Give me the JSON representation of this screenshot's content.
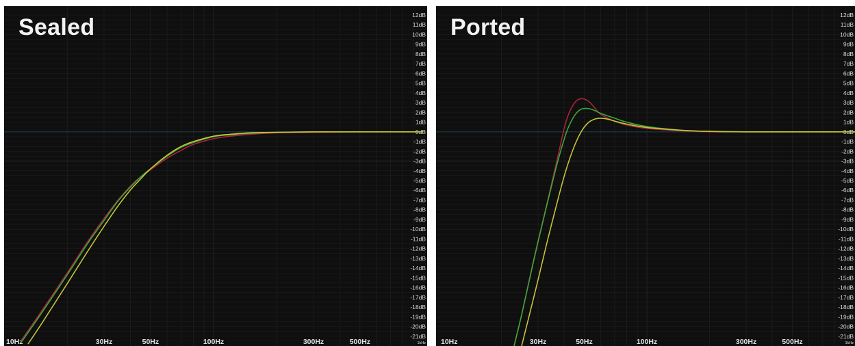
{
  "panels": [
    {
      "title": "Sealed"
    },
    {
      "title": "Ported"
    }
  ],
  "colors": {
    "background": "#0f0f0f",
    "grid": "#262626",
    "reference_line": "#1c3c48",
    "series": [
      "#a8243c",
      "#3aa83a",
      "#c4c43a"
    ]
  },
  "chart_data": [
    {
      "type": "line",
      "title": "Sealed",
      "x_scale": "log",
      "xlim": [
        10,
        1000
      ],
      "ylim": [
        -22,
        12
      ],
      "x_ticks": [
        {
          "value": 10,
          "label": "10Hz"
        },
        {
          "value": 30,
          "label": "30Hz"
        },
        {
          "value": 50,
          "label": "50Hz"
        },
        {
          "value": 100,
          "label": "100Hz"
        },
        {
          "value": 300,
          "label": "300Hz"
        },
        {
          "value": 500,
          "label": "500Hz"
        },
        {
          "value": 1000,
          "label": "1kHz"
        }
      ],
      "y_ticks": [
        "12dB",
        "11dB",
        "10dB",
        "9dB",
        "8dB",
        "7dB",
        "6dB",
        "5dB",
        "4dB",
        "3dB",
        "2dB",
        "1dB",
        "0dB",
        "-1dB",
        "-2dB",
        "-3dB",
        "-4dB",
        "-5dB",
        "-6dB",
        "-7dB",
        "-8dB",
        "-9dB",
        "-10dB",
        "-11dB",
        "-12dB",
        "-13dB",
        "-14dB",
        "-15dB",
        "-16dB",
        "-17dB",
        "-18dB",
        "-19dB",
        "-20dB",
        "-21dB"
      ],
      "grid": true,
      "series": [
        {
          "x": [
            12,
            15,
            20,
            25,
            30,
            35,
            40,
            45,
            50,
            60,
            70,
            80,
            100,
            120,
            150,
            200,
            300,
            500,
            1000
          ],
          "y": [
            -21.5,
            -18.5,
            -14.5,
            -11.3,
            -8.9,
            -7.0,
            -5.6,
            -4.6,
            -3.9,
            -2.7,
            -1.9,
            -1.3,
            -0.7,
            -0.45,
            -0.25,
            -0.1,
            -0.05,
            0,
            0
          ]
        },
        {
          "x": [
            12,
            15,
            20,
            25,
            30,
            35,
            40,
            45,
            50,
            60,
            70,
            80,
            100,
            120,
            150,
            200,
            300,
            500,
            1000
          ],
          "y": [
            -21.7,
            -18.7,
            -14.7,
            -11.5,
            -9.1,
            -7.1,
            -5.7,
            -4.6,
            -3.8,
            -2.5,
            -1.6,
            -1.1,
            -0.5,
            -0.3,
            -0.15,
            -0.05,
            0,
            0,
            0
          ]
        },
        {
          "x": [
            13,
            15,
            20,
            25,
            30,
            35,
            40,
            45,
            50,
            60,
            70,
            80,
            100,
            120,
            150,
            200,
            300,
            500,
            1000
          ],
          "y": [
            -21.8,
            -19.8,
            -15.6,
            -12.3,
            -9.7,
            -7.6,
            -6.0,
            -4.8,
            -3.8,
            -2.4,
            -1.5,
            -1.0,
            -0.45,
            -0.25,
            -0.1,
            -0.05,
            0,
            0,
            0
          ]
        }
      ]
    },
    {
      "type": "line",
      "title": "Ported",
      "x_scale": "log",
      "xlim": [
        10,
        1000
      ],
      "ylim": [
        -22,
        12
      ],
      "x_ticks": [
        {
          "value": 10,
          "label": "10Hz"
        },
        {
          "value": 30,
          "label": "30Hz"
        },
        {
          "value": 50,
          "label": "50Hz"
        },
        {
          "value": 100,
          "label": "100Hz"
        },
        {
          "value": 300,
          "label": "300Hz"
        },
        {
          "value": 500,
          "label": "500Hz"
        },
        {
          "value": 1000,
          "label": "1kHz"
        }
      ],
      "y_ticks": [
        "12dB",
        "11dB",
        "10dB",
        "9dB",
        "8dB",
        "7dB",
        "6dB",
        "5dB",
        "4dB",
        "3dB",
        "2dB",
        "1dB",
        "0dB",
        "-1dB",
        "-2dB",
        "-3dB",
        "-4dB",
        "-5dB",
        "-6dB",
        "-7dB",
        "-8dB",
        "-9dB",
        "-10dB",
        "-11dB",
        "-12dB",
        "-13dB",
        "-14dB",
        "-15dB",
        "-16dB",
        "-17dB",
        "-18dB",
        "-19dB",
        "-20dB",
        "-21dB"
      ],
      "grid": true,
      "series": [
        {
          "x": [
            23,
            25,
            28,
            30,
            33,
            36,
            38,
            40,
            42,
            45,
            48,
            52,
            56,
            60,
            70,
            80,
            100,
            150,
            200,
            300,
            500,
            1000
          ],
          "y": [
            -22,
            -18.8,
            -14,
            -11.2,
            -7.5,
            -4,
            -1.8,
            0.3,
            1.8,
            3,
            3.4,
            3.2,
            2.5,
            1.8,
            1.1,
            0.7,
            0.35,
            0.1,
            0,
            0,
            0,
            0
          ]
        },
        {
          "x": [
            23,
            25,
            28,
            30,
            33,
            36,
            38,
            40,
            42,
            45,
            48,
            52,
            56,
            60,
            70,
            80,
            100,
            150,
            200,
            300,
            500,
            1000
          ],
          "y": [
            -22,
            -18.8,
            -14.1,
            -11.3,
            -7.6,
            -4.3,
            -2.4,
            -0.8,
            0.5,
            1.7,
            2.3,
            2.4,
            2.2,
            1.9,
            1.4,
            1.0,
            0.55,
            0.15,
            0.05,
            0,
            0,
            0
          ]
        },
        {
          "x": [
            25,
            28,
            30,
            33,
            36,
            40,
            44,
            48,
            52,
            56,
            60,
            65,
            70,
            80,
            100,
            150,
            200,
            300,
            500,
            1000
          ],
          "y": [
            -22,
            -17.8,
            -15.2,
            -11.5,
            -8.3,
            -4.6,
            -1.9,
            -0.1,
            0.9,
            1.3,
            1.4,
            1.3,
            1.1,
            0.8,
            0.45,
            0.15,
            0.05,
            0,
            0,
            0
          ]
        }
      ]
    }
  ]
}
